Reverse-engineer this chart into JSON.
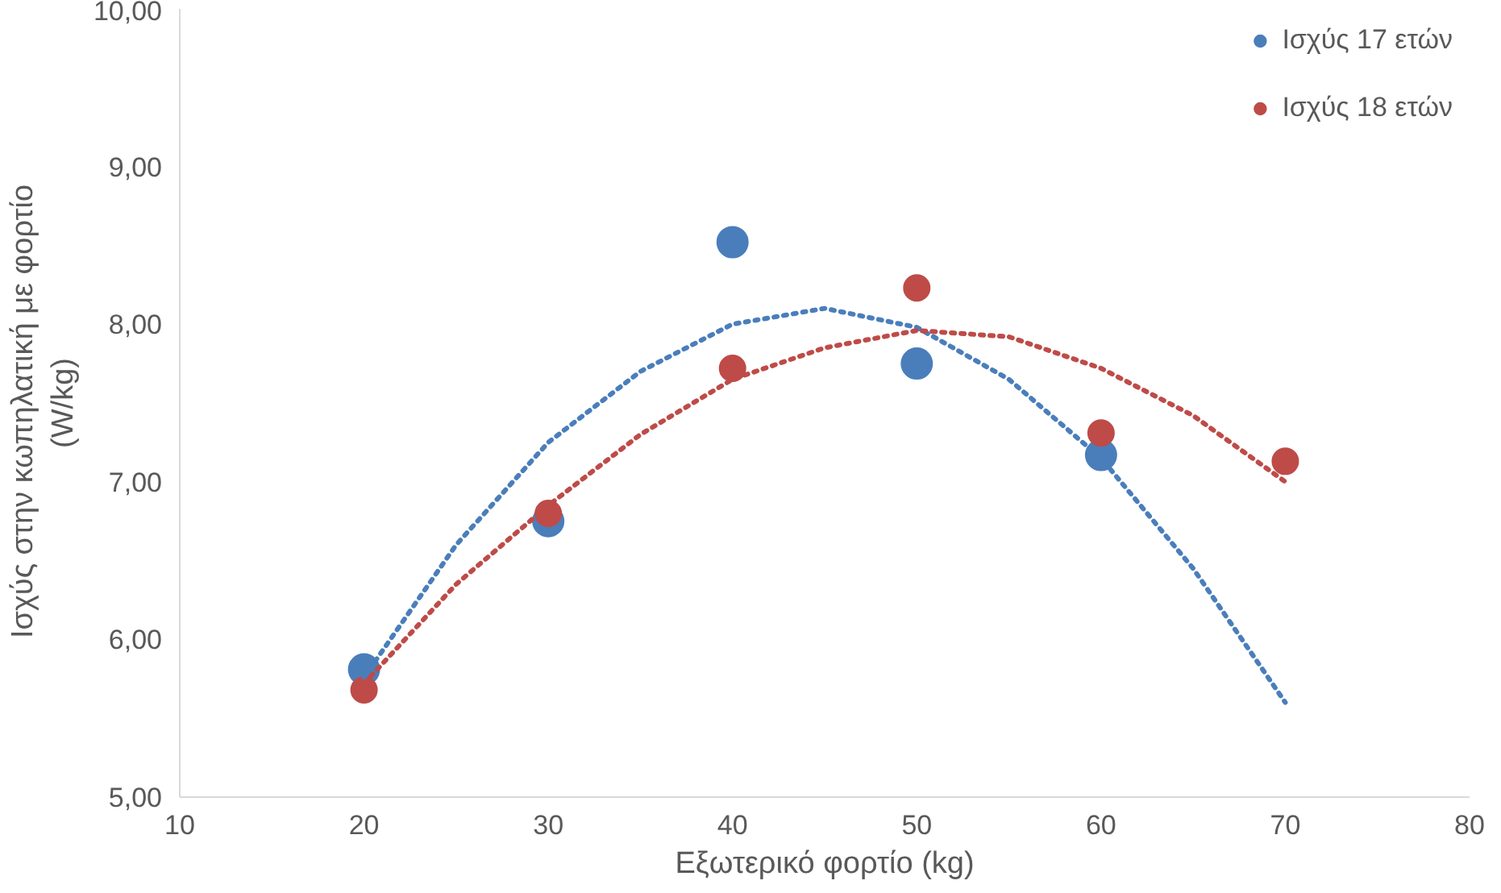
{
  "chart_data": {
    "type": "scatter",
    "xlabel": "Εξωτερικό φορτίο (kg)",
    "ylabel": "Ισχύς  στην κωπηλατική  με φορτίο\n(W/kg)",
    "xlim": [
      10,
      80
    ],
    "xticks": [
      10,
      20,
      30,
      40,
      50,
      60,
      70,
      80
    ],
    "ylim": [
      5,
      10
    ],
    "yticks": [
      {
        "value": 5,
        "label": "5,00"
      },
      {
        "value": 6,
        "label": "6,00"
      },
      {
        "value": 7,
        "label": "7,00"
      },
      {
        "value": 8,
        "label": "8,00"
      },
      {
        "value": 9,
        "label": "9,00"
      },
      {
        "value": 10,
        "label": "10,00"
      }
    ],
    "grid": false,
    "legend": "top right",
    "marker": "circle",
    "series": [
      {
        "name": "Ισχύς 17 ετών",
        "color": "#4a7ebb",
        "x": [
          20,
          30,
          40,
          50,
          60
        ],
        "values": [
          5.81,
          6.75,
          8.52,
          7.75,
          7.17
        ]
      },
      {
        "name": "Ισχύς 18 ετών",
        "color": "#be4b48",
        "x": [
          20,
          30,
          40,
          50,
          60,
          70
        ],
        "values": [
          5.68,
          6.8,
          7.72,
          8.23,
          7.31,
          7.13
        ]
      },
      {
        "type": "line",
        "line_style": "dotted",
        "marker": "none",
        "color": "#4a7ebb",
        "x": [
          20,
          25,
          30,
          35,
          40,
          45,
          50,
          55,
          60,
          65,
          70
        ],
        "values": [
          5.76,
          6.6,
          7.25,
          7.7,
          8.0,
          8.1,
          7.98,
          7.65,
          7.15,
          6.45,
          5.6
        ]
      },
      {
        "type": "line",
        "line_style": "dotted",
        "marker": "none",
        "color": "#be4b48",
        "x": [
          20,
          25,
          30,
          35,
          40,
          45,
          50,
          55,
          60,
          65,
          70
        ],
        "values": [
          5.72,
          6.35,
          6.85,
          7.3,
          7.65,
          7.85,
          7.96,
          7.92,
          7.72,
          7.42,
          7.0
        ]
      }
    ]
  }
}
